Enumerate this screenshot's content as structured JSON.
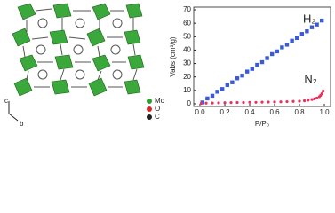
{
  "structure_legend": {
    "items": [
      {
        "label": "Mo",
        "color": "#2ca02c"
      },
      {
        "label": "O",
        "color": "#d62728"
      },
      {
        "label": "C",
        "color": "#222222"
      }
    ],
    "axes": [
      "c",
      "b"
    ]
  },
  "chart_data": {
    "type": "scatter",
    "x_label": "P/P₀",
    "y_label": "Vabs (cm³/g)",
    "xlim": [
      -0.05,
      1.05
    ],
    "ylim": [
      -2,
      72
    ],
    "xticks": [
      {
        "value": 0,
        "label": "0.0"
      },
      {
        "value": 0.2,
        "label": "0.2"
      },
      {
        "value": 0.4,
        "label": "0.4"
      },
      {
        "value": 0.6,
        "label": "0.6"
      },
      {
        "value": 0.8,
        "label": "0.8"
      },
      {
        "value": 1,
        "label": "1.0"
      }
    ],
    "yticks": [
      0,
      10,
      20,
      30,
      40,
      50,
      60,
      70
    ],
    "series": [
      {
        "name": "H₂",
        "color": "#3a5bd9",
        "marker": "square",
        "x": [
          0.02,
          0.06,
          0.1,
          0.14,
          0.18,
          0.22,
          0.26,
          0.3,
          0.34,
          0.38,
          0.42,
          0.46,
          0.5,
          0.54,
          0.58,
          0.62,
          0.66,
          0.7,
          0.74,
          0.78,
          0.82,
          0.86,
          0.9,
          0.94,
          0.98
        ],
        "values": [
          1,
          4,
          6,
          9,
          11,
          14,
          16,
          19,
          21,
          24,
          26,
          29,
          31,
          34,
          37,
          39,
          42,
          44,
          47,
          49,
          52,
          54,
          57,
          59,
          62
        ]
      },
      {
        "name": "N₂",
        "color": "#e8325a",
        "marker": "circle",
        "x": [
          0.01,
          0.05,
          0.1,
          0.15,
          0.2,
          0.25,
          0.3,
          0.35,
          0.4,
          0.45,
          0.5,
          0.55,
          0.6,
          0.65,
          0.7,
          0.75,
          0.8,
          0.84,
          0.87,
          0.9,
          0.92,
          0.94,
          0.96,
          0.97,
          0.98,
          0.99
        ],
        "values": [
          0.3,
          0.5,
          0.6,
          0.7,
          0.8,
          0.9,
          1,
          1,
          1.1,
          1.1,
          1.2,
          1.3,
          1.4,
          1.5,
          1.6,
          1.8,
          2,
          2.3,
          2.7,
          3.2,
          3.7,
          4.3,
          5.3,
          6.3,
          7.5,
          9.5
        ]
      }
    ]
  }
}
